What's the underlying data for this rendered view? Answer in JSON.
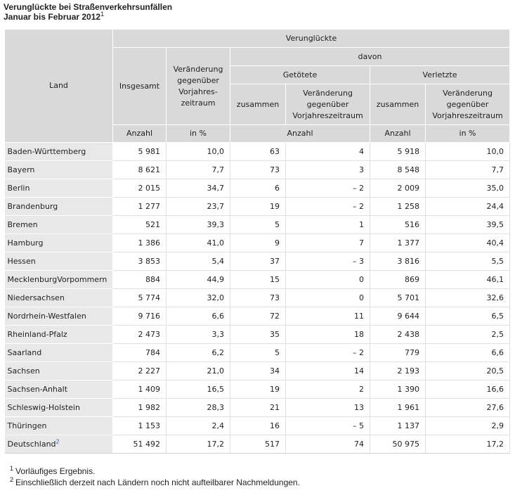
{
  "title": {
    "line1": "Verunglückte bei Straßenverkehrsunfällen",
    "line2": "Januar bis Februar 2012",
    "footnote_ref": "1"
  },
  "header": {
    "land": "Land",
    "verunglueckte": "Verunglückte",
    "davon": "davon",
    "insgesamt": "Insgesamt",
    "veraenderung": "Veränderung gegenüber Vorjahres-zeitraum",
    "getoetete": "Getötete",
    "verletzte": "Verletzte",
    "zusammen": "zusammen",
    "veraenderung2": "Veränderung gegenüber Vorjahreszeitraum",
    "unit_anzahl": "Anzahl",
    "unit_prozent": "in %"
  },
  "rows": [
    {
      "land": "Baden-Württemberg",
      "insgesamt": "5 981",
      "veraenderung": "10,0",
      "getoetete": "63",
      "getoetete_veraenderung": "4",
      "verletzte": "5 918",
      "verletzte_veraenderung": "10,0"
    },
    {
      "land": "Bayern",
      "insgesamt": "8 621",
      "veraenderung": "7,7",
      "getoetete": "73",
      "getoetete_veraenderung": "3",
      "verletzte": "8 548",
      "verletzte_veraenderung": "7,7"
    },
    {
      "land": "Berlin",
      "insgesamt": "2 015",
      "veraenderung": "34,7",
      "getoetete": "6",
      "getoetete_veraenderung": "– 2",
      "verletzte": "2 009",
      "verletzte_veraenderung": "35,0"
    },
    {
      "land": "Brandenburg",
      "insgesamt": "1 277",
      "veraenderung": "23,7",
      "getoetete": "19",
      "getoetete_veraenderung": "– 2",
      "verletzte": "1 258",
      "verletzte_veraenderung": "24,4"
    },
    {
      "land": "Bremen",
      "insgesamt": "521",
      "veraenderung": "39,3",
      "getoetete": "5",
      "getoetete_veraenderung": "1",
      "verletzte": "516",
      "verletzte_veraenderung": "39,5"
    },
    {
      "land": "Hamburg",
      "insgesamt": "1 386",
      "veraenderung": "41,0",
      "getoetete": "9",
      "getoetete_veraenderung": "7",
      "verletzte": "1 377",
      "verletzte_veraenderung": "40,4"
    },
    {
      "land": "Hessen",
      "insgesamt": "3 853",
      "veraenderung": "5,4",
      "getoetete": "37",
      "getoetete_veraenderung": "– 3",
      "verletzte": "3 816",
      "verletzte_veraenderung": "5,5"
    },
    {
      "land": "MecklenburgVorpommern",
      "insgesamt": "884",
      "veraenderung": "44,9",
      "getoetete": "15",
      "getoetete_veraenderung": "0",
      "verletzte": "869",
      "verletzte_veraenderung": "46,1"
    },
    {
      "land": "Niedersachsen",
      "insgesamt": "5 774",
      "veraenderung": "32,0",
      "getoetete": "73",
      "getoetete_veraenderung": "0",
      "verletzte": "5 701",
      "verletzte_veraenderung": "32,6"
    },
    {
      "land": "Nordrhein-Westfalen",
      "insgesamt": "9 716",
      "veraenderung": "6,6",
      "getoetete": "72",
      "getoetete_veraenderung": "11",
      "verletzte": "9 644",
      "verletzte_veraenderung": "6,5"
    },
    {
      "land": "Rheinland-Pfalz",
      "insgesamt": "2 473",
      "veraenderung": "3,3",
      "getoetete": "35",
      "getoetete_veraenderung": "18",
      "verletzte": "2 438",
      "verletzte_veraenderung": "2,5"
    },
    {
      "land": "Saarland",
      "insgesamt": "784",
      "veraenderung": "6,2",
      "getoetete": "5",
      "getoetete_veraenderung": "– 2",
      "verletzte": "779",
      "verletzte_veraenderung": "6,6"
    },
    {
      "land": "Sachsen",
      "insgesamt": "2 227",
      "veraenderung": "21,0",
      "getoetete": "34",
      "getoetete_veraenderung": "14",
      "verletzte": "2 193",
      "verletzte_veraenderung": "20,5"
    },
    {
      "land": "Sachsen-Anhalt",
      "insgesamt": "1 409",
      "veraenderung": "16,5",
      "getoetete": "19",
      "getoetete_veraenderung": "2",
      "verletzte": "1 390",
      "verletzte_veraenderung": "16,6"
    },
    {
      "land": "Schleswig-Holstein",
      "insgesamt": "1 982",
      "veraenderung": "28,3",
      "getoetete": "21",
      "getoetete_veraenderung": "13",
      "verletzte": "1 961",
      "verletzte_veraenderung": "27,6"
    },
    {
      "land": "Thüringen",
      "insgesamt": "1 153",
      "veraenderung": "2,4",
      "getoetete": "16",
      "getoetete_veraenderung": "– 5",
      "verletzte": "1 137",
      "verletzte_veraenderung": "2,9"
    },
    {
      "land": "Deutschland",
      "footnote_ref": "2",
      "insgesamt": "51 492",
      "veraenderung": "17,2",
      "getoetete": "517",
      "getoetete_veraenderung": "74",
      "verletzte": "50 975",
      "verletzte_veraenderung": "17,2"
    }
  ],
  "footnotes": [
    {
      "ref": "1",
      "text": "Vorläufiges Ergebnis."
    },
    {
      "ref": "2",
      "text": "Einschließlich derzeit nach Ländern noch nicht aufteilbarer Nachmeldungen."
    }
  ]
}
